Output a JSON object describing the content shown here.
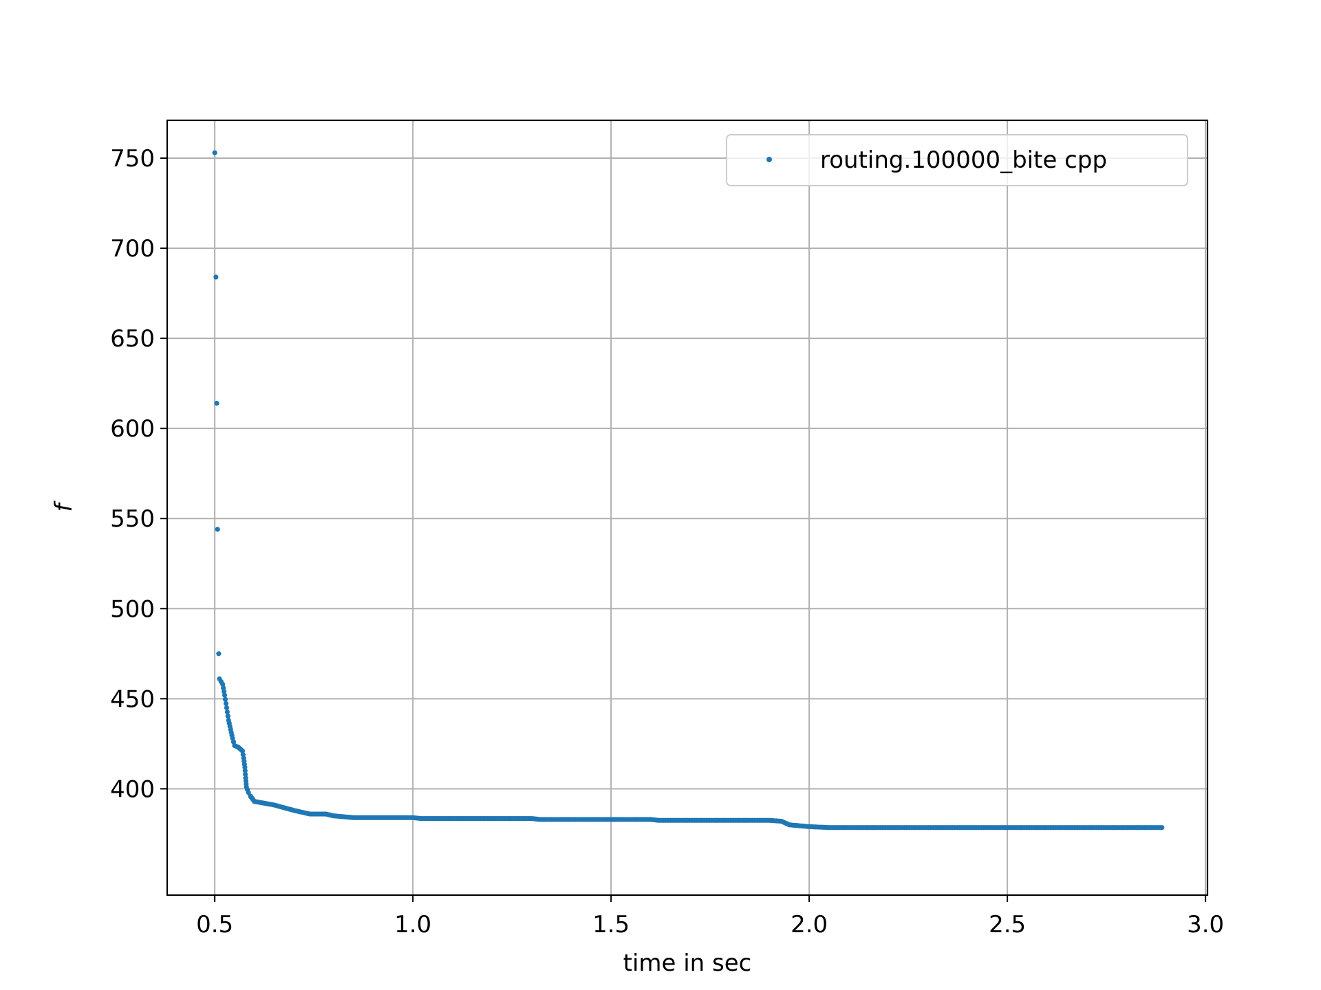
{
  "chart_data": {
    "type": "scatter",
    "title": "",
    "xlabel": "time in sec",
    "ylabel": "f",
    "xlim": [
      0.38,
      3.005
    ],
    "ylim": [
      341,
      771
    ],
    "xticks": [
      0.5,
      1.0,
      1.5,
      2.0,
      2.5,
      3.0
    ],
    "xtick_labels": [
      "0.5",
      "1.0",
      "1.5",
      "2.0",
      "2.5",
      "3.0"
    ],
    "yticks": [
      400,
      450,
      500,
      550,
      600,
      650,
      700,
      750
    ],
    "ytick_labels": [
      "400",
      "450",
      "500",
      "550",
      "600",
      "650",
      "700",
      "750"
    ],
    "grid": true,
    "legend_position": "top-right",
    "series_color": "#1f77b4",
    "series": [
      {
        "name": "routing.100000_bite cpp",
        "isolated_points": [
          [
            0.5,
            753
          ],
          [
            0.503,
            684
          ],
          [
            0.505,
            614
          ],
          [
            0.507,
            544
          ],
          [
            0.51,
            475
          ]
        ],
        "trend": [
          [
            0.512,
            461
          ],
          [
            0.52,
            458
          ],
          [
            0.525,
            452
          ],
          [
            0.53,
            445
          ],
          [
            0.535,
            438
          ],
          [
            0.54,
            433
          ],
          [
            0.545,
            428
          ],
          [
            0.55,
            424
          ],
          [
            0.56,
            423
          ],
          [
            0.57,
            421
          ],
          [
            0.573,
            417
          ],
          [
            0.576,
            412
          ],
          [
            0.578,
            406
          ],
          [
            0.58,
            401
          ],
          [
            0.585,
            398
          ],
          [
            0.59,
            396
          ],
          [
            0.6,
            393
          ],
          [
            0.65,
            391
          ],
          [
            0.7,
            388
          ],
          [
            0.74,
            386
          ],
          [
            0.78,
            386
          ],
          [
            0.8,
            385
          ],
          [
            0.85,
            384
          ],
          [
            1.0,
            384
          ],
          [
            1.02,
            383.5
          ],
          [
            1.3,
            383.5
          ],
          [
            1.32,
            383
          ],
          [
            1.6,
            383
          ],
          [
            1.62,
            382.5
          ],
          [
            1.9,
            382.5
          ],
          [
            1.93,
            382
          ],
          [
            1.95,
            380
          ],
          [
            2.0,
            379
          ],
          [
            2.05,
            378.5
          ],
          [
            2.89,
            378.5
          ]
        ]
      }
    ]
  }
}
